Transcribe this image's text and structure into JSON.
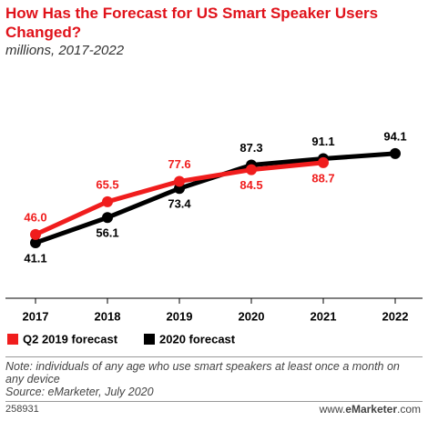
{
  "chart_data": {
    "type": "line",
    "title": "How Has the Forecast for US Smart Speaker Users Changed?",
    "subtitle": "millions, 2017-2022",
    "categories": [
      "2017",
      "2018",
      "2019",
      "2020",
      "2021",
      "2022"
    ],
    "series": [
      {
        "name": "Q2 2019 forecast",
        "color": "#f01d1d",
        "values": [
          46.0,
          65.5,
          77.6,
          84.5,
          88.7,
          null
        ],
        "value_labels": [
          "46.0",
          "65.5",
          "77.6",
          "84.5",
          "88.7",
          null
        ]
      },
      {
        "name": "2020 forecast",
        "color": "#000000",
        "values": [
          41.1,
          56.1,
          73.4,
          87.3,
          91.1,
          94.1
        ],
        "value_labels": [
          "41.1",
          "56.1",
          "73.4",
          "87.3",
          "91.1",
          "94.1"
        ]
      }
    ],
    "note": "Note: individuals of any age who use smart speakers at least once a month on any device",
    "source": "Source: eMarketer, July 2020",
    "chart_id": "258931",
    "brand": {
      "prefix": "www.",
      "name": "eMarketer",
      "suffix": ".com"
    }
  }
}
